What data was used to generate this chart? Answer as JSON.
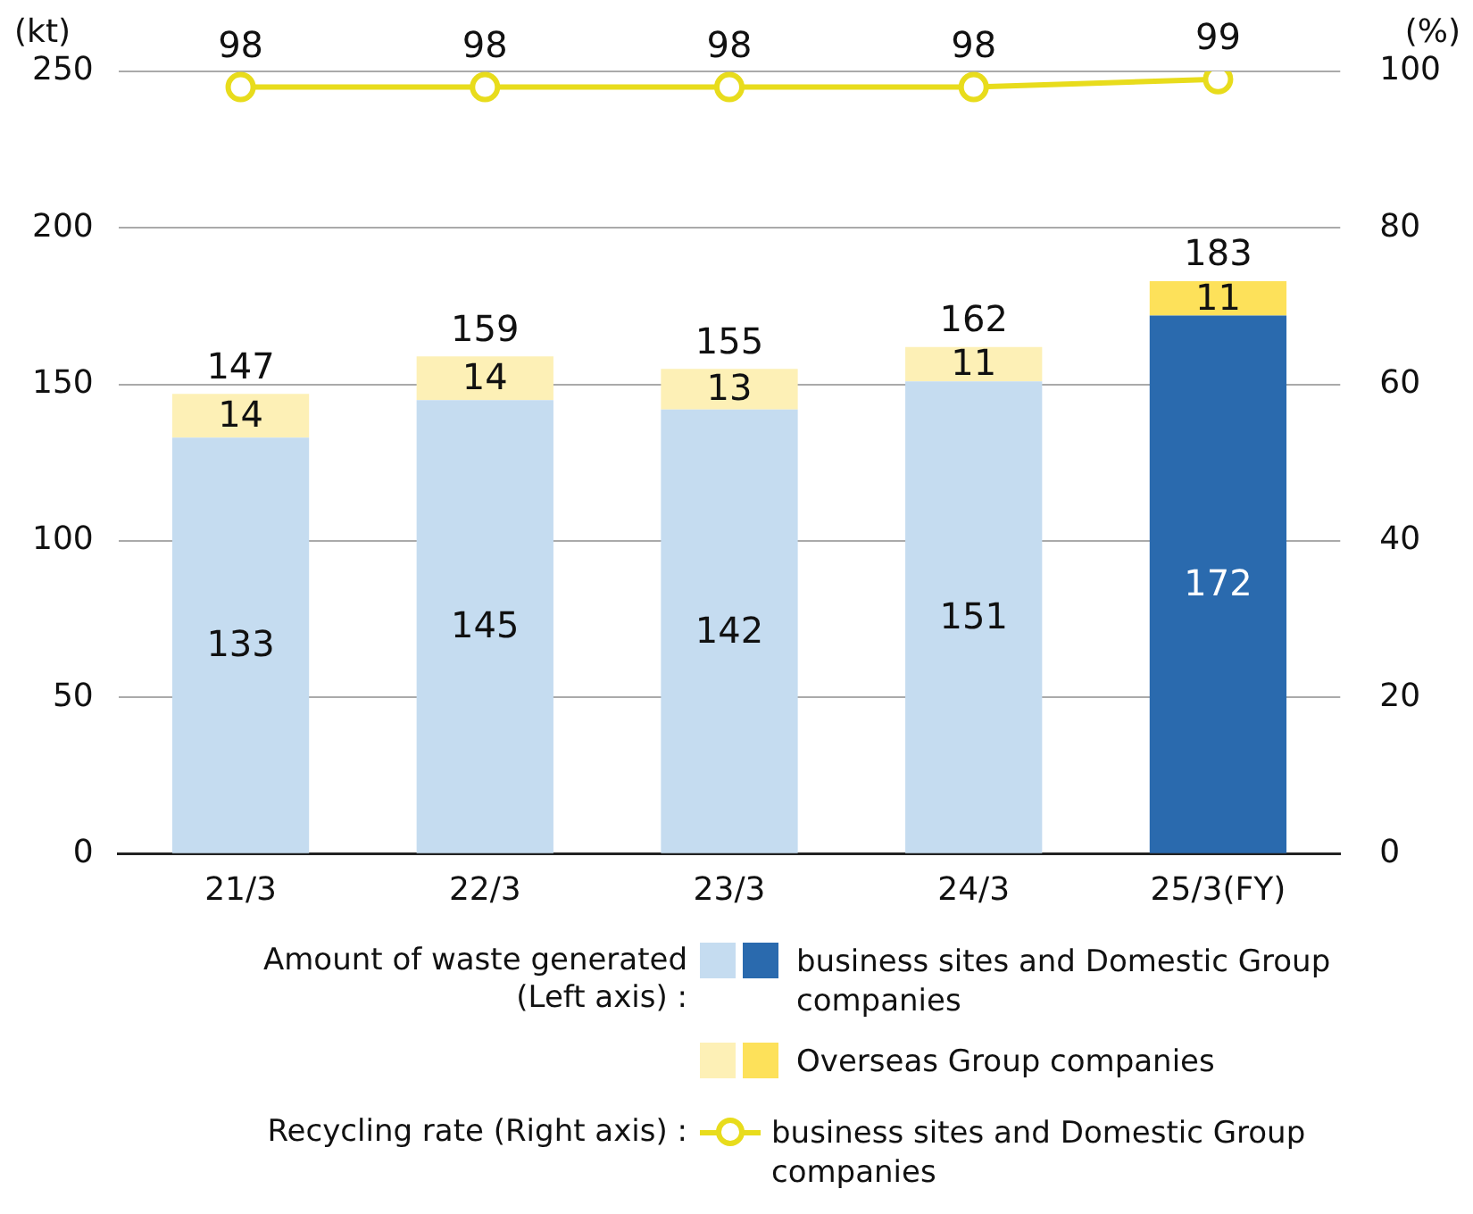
{
  "chart_data": {
    "type": "bar",
    "stacked": true,
    "ylabel": "(kt)",
    "y2label": "(%)",
    "categories": [
      "21/3",
      "22/3",
      "23/3",
      "24/3",
      "25/3(FY)"
    ],
    "series": [
      {
        "name": "business sites and Domestic Group companies",
        "colors": [
          "#c5dcf0",
          "#c5dcf0",
          "#c5dcf0",
          "#c5dcf0",
          "#2a6aae"
        ],
        "values": [
          133,
          145,
          142,
          151,
          172
        ]
      },
      {
        "name": "Overseas Group companies",
        "colors": [
          "#fdf0b6",
          "#fdf0b6",
          "#fdf0b6",
          "#fdf0b6",
          "#fde15a"
        ],
        "values": [
          14,
          14,
          13,
          11,
          11
        ]
      },
      {
        "name": "business sites and Domestic Group companies",
        "type": "line",
        "axis": "y2",
        "color": "#e8dc1c",
        "values": [
          98,
          98,
          98,
          98,
          99
        ]
      }
    ],
    "totals": [
      "147",
      "159",
      "155",
      "162",
      "183"
    ],
    "data_labels": true,
    "marker": "circle",
    "grid": "y",
    "legend": "bottom",
    "ylim": [
      0,
      250
    ],
    "yticks": [
      0,
      50,
      100,
      150,
      200,
      250
    ],
    "y2lim": [
      0,
      100
    ],
    "y2ticks": [
      0,
      20,
      40,
      60,
      80,
      100
    ],
    "annotations": [
      "Amount of waste generated\n(Left axis) :",
      "Recycling rate (Right axis) :"
    ]
  }
}
